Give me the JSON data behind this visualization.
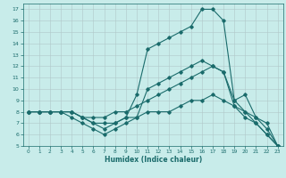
{
  "xlabel": "Humidex (Indice chaleur)",
  "ylabel": "",
  "bg_color": "#c8ecea",
  "grid_color": "#b0c8c8",
  "line_color": "#1a6b6b",
  "xlim": [
    -0.5,
    23.5
  ],
  "ylim": [
    5,
    17.5
  ],
  "xticks": [
    0,
    1,
    2,
    3,
    4,
    5,
    6,
    7,
    8,
    9,
    10,
    11,
    12,
    13,
    14,
    15,
    16,
    17,
    18,
    19,
    20,
    21,
    22,
    23
  ],
  "yticks": [
    5,
    6,
    7,
    8,
    9,
    10,
    11,
    12,
    13,
    14,
    15,
    16,
    17
  ],
  "lines": [
    {
      "x": [
        0,
        1,
        2,
        3,
        4,
        5,
        6,
        7,
        8,
        9,
        10,
        11,
        12,
        13,
        14,
        15,
        16,
        17,
        18,
        19,
        20,
        21,
        22,
        23
      ],
      "y": [
        8,
        8,
        8,
        8,
        8,
        7.5,
        7,
        6.5,
        7,
        7.5,
        9.5,
        13.5,
        14,
        14.5,
        15,
        15.5,
        17,
        17,
        16,
        9,
        9.5,
        7.5,
        6.5,
        5
      ]
    },
    {
      "x": [
        0,
        1,
        2,
        3,
        4,
        5,
        6,
        7,
        8,
        9,
        10,
        11,
        12,
        13,
        14,
        15,
        16,
        17,
        18,
        19,
        20,
        21,
        22,
        23
      ],
      "y": [
        8,
        8,
        8,
        8,
        7.5,
        7,
        6.5,
        6,
        6.5,
        7,
        7.5,
        10,
        10.5,
        11,
        11.5,
        12,
        12.5,
        12,
        11.5,
        8.5,
        7.5,
        7,
        6,
        5
      ]
    },
    {
      "x": [
        0,
        1,
        2,
        3,
        4,
        5,
        6,
        7,
        8,
        9,
        10,
        11,
        12,
        13,
        14,
        15,
        16,
        17,
        18,
        19,
        20,
        21,
        22,
        23
      ],
      "y": [
        8,
        8,
        8,
        8,
        8,
        7.5,
        7.5,
        7.5,
        8,
        8,
        8.5,
        9,
        9.5,
        10,
        10.5,
        11,
        11.5,
        12,
        11.5,
        9,
        8,
        7,
        6,
        5
      ]
    },
    {
      "x": [
        0,
        1,
        2,
        3,
        4,
        5,
        6,
        7,
        8,
        9,
        10,
        11,
        12,
        13,
        14,
        15,
        16,
        17,
        18,
        19,
        20,
        21,
        22,
        23
      ],
      "y": [
        8,
        8,
        8,
        8,
        8,
        7.5,
        7,
        7,
        7,
        7.5,
        7.5,
        8,
        8,
        8,
        8.5,
        9,
        9,
        9.5,
        9,
        8.5,
        8,
        7.5,
        7,
        5
      ]
    }
  ]
}
